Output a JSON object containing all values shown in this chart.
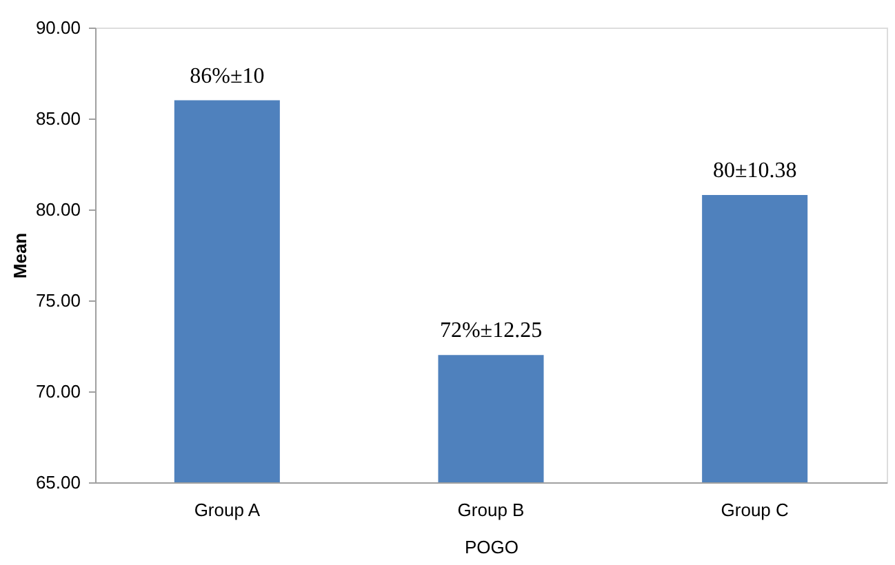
{
  "chart_data": {
    "type": "bar",
    "xlabel": "POGO",
    "ylabel": "Mean",
    "categories": [
      "Group A",
      "Group B",
      "Group C"
    ],
    "values": [
      86,
      72,
      80.8
    ],
    "annotations": [
      {
        "text": "86%±10",
        "x": "Group A",
        "y": 86
      },
      {
        "text": "72%±12.25",
        "x": "Group B",
        "y": 72
      },
      {
        "text": "80±10.38",
        "x": "Group C",
        "y": 80.8
      }
    ],
    "color": "#4f81bd",
    "ylim": [
      65,
      90
    ],
    "yticks": [
      {
        "value": 65,
        "label": "65.00"
      },
      {
        "value": 70,
        "label": "70.00"
      },
      {
        "value": 75,
        "label": "75.00"
      },
      {
        "value": 80,
        "label": "80.00"
      },
      {
        "value": 85,
        "label": "85.00"
      },
      {
        "value": 90,
        "label": "90.00"
      }
    ],
    "grid": false
  }
}
